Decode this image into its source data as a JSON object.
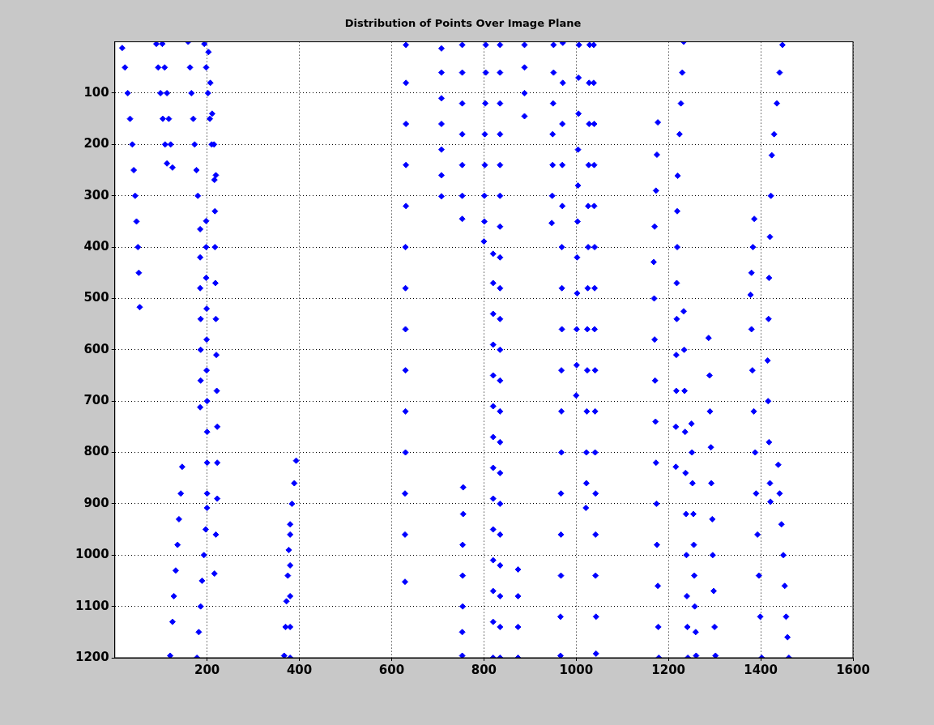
{
  "chart_data": {
    "type": "scatter",
    "title": "Distribution of Points Over Image Plane",
    "xlim": [
      0,
      1600
    ],
    "xticks": [
      200,
      400,
      600,
      800,
      1000,
      1200,
      1400,
      1600
    ],
    "ylim": [
      1200,
      0
    ],
    "yticks": [
      100,
      200,
      300,
      400,
      500,
      600,
      700,
      800,
      900,
      1000,
      1100,
      1200
    ],
    "grid": true,
    "legend": false,
    "marker": "diamond",
    "series": [
      {
        "color": "#0000ff",
        "x": [
          16,
          22,
          28,
          33,
          38,
          41,
          44,
          47,
          50,
          52,
          54
        ],
        "values": [
          12,
          50,
          100,
          150,
          200,
          250,
          300,
          350,
          400,
          450,
          517
        ]
      },
      {
        "color": "#0000ff",
        "x": [
          90,
          94,
          99,
          104,
          109,
          113
        ],
        "values": [
          4,
          50,
          100,
          150,
          200,
          237
        ]
      },
      {
        "color": "#0000ff",
        "x": [
          103,
          108,
          113,
          117,
          121,
          125
        ],
        "values": [
          4,
          50,
          100,
          150,
          200,
          245
        ]
      },
      {
        "color": "#0000ff",
        "x": [
          159,
          163,
          166,
          170,
          173,
          177,
          180,
          185,
          185,
          185,
          186,
          186,
          186,
          185
        ],
        "values": [
          0,
          50,
          100,
          150,
          200,
          250,
          300,
          365,
          420,
          480,
          540,
          600,
          660,
          712
        ]
      },
      {
        "color": "#0000ff",
        "x": [
          198,
          198,
          198,
          199,
          199,
          199,
          200,
          200,
          200,
          200,
          200
        ],
        "values": [
          349,
          400,
          460,
          520,
          580,
          640,
          700,
          760,
          820,
          880,
          908
        ]
      },
      {
        "color": "#0000ff",
        "x": [
          197,
          193,
          189,
          186,
          182,
          178
        ],
        "values": [
          950,
          1000,
          1050,
          1100,
          1150,
          1200
        ]
      },
      {
        "color": "#0000ff",
        "x": [
          194,
          198,
          202,
          206,
          210,
          216,
          217,
          217,
          218,
          219,
          220,
          221,
          222,
          222,
          222,
          219,
          216
        ],
        "values": [
          4,
          50,
          100,
          150,
          200,
          269,
          330,
          400,
          470,
          540,
          610,
          680,
          750,
          820,
          890,
          960,
          1036
        ]
      },
      {
        "color": "#0000ff",
        "x": [
          203,
          207,
          211,
          215,
          219
        ],
        "values": [
          20,
          80,
          140,
          200,
          260
        ]
      },
      {
        "color": "#0000ff",
        "x": [
          146,
          143,
          139,
          136,
          132,
          128,
          125,
          120
        ],
        "values": [
          828,
          880,
          930,
          980,
          1030,
          1080,
          1130,
          1196
        ]
      },
      {
        "color": "#0000ff",
        "x": [
          393,
          389,
          384,
          380,
          377,
          375,
          372,
          370,
          367
        ],
        "values": [
          816,
          860,
          900,
          940,
          990,
          1040,
          1090,
          1140,
          1196
        ]
      },
      {
        "color": "#0000ff",
        "x": [
          380,
          380,
          380,
          380,
          380
        ],
        "values": [
          960,
          1020,
          1080,
          1140,
          1200
        ]
      },
      {
        "color": "#0000ff",
        "x": [
          631,
          631,
          631,
          631,
          631,
          630,
          630,
          630,
          630,
          630,
          630,
          629,
          629,
          629
        ],
        "values": [
          6,
          80,
          160,
          240,
          320,
          400,
          480,
          560,
          640,
          720,
          800,
          880,
          960,
          1052
        ]
      },
      {
        "color": "#0000ff",
        "x": [
          708,
          708,
          708,
          708,
          708,
          708,
          708
        ],
        "values": [
          13,
          60,
          110,
          160,
          210,
          260,
          301
        ]
      },
      {
        "color": "#0000ff",
        "x": [
          753,
          753,
          753,
          753,
          753,
          753,
          753
        ],
        "values": [
          6,
          60,
          120,
          180,
          240,
          300,
          345
        ]
      },
      {
        "color": "#0000ff",
        "x": [
          755,
          755,
          754,
          754,
          754,
          753,
          753
        ],
        "values": [
          868,
          920,
          980,
          1040,
          1100,
          1150,
          1196
        ]
      },
      {
        "color": "#0000ff",
        "x": [
          804,
          804,
          803,
          802,
          802,
          801,
          801,
          800
        ],
        "values": [
          6,
          60,
          120,
          180,
          240,
          300,
          350,
          389
        ]
      },
      {
        "color": "#0000ff",
        "x": [
          835,
          835,
          835,
          835,
          835,
          835,
          835,
          835,
          835,
          835,
          835,
          835,
          835,
          835,
          835,
          835,
          835,
          835,
          835,
          835,
          835
        ],
        "values": [
          6,
          60,
          120,
          180,
          240,
          300,
          360,
          420,
          480,
          540,
          600,
          660,
          720,
          780,
          840,
          900,
          960,
          1020,
          1080,
          1140,
          1200
        ]
      },
      {
        "color": "#0000ff",
        "x": [
          820,
          820,
          820,
          820,
          820,
          820,
          820,
          820,
          820,
          820,
          820,
          820,
          820,
          820
        ],
        "values": [
          413,
          470,
          530,
          590,
          650,
          710,
          770,
          830,
          890,
          950,
          1010,
          1070,
          1130,
          1200
        ]
      },
      {
        "color": "#0000ff",
        "x": [
          888,
          888,
          888,
          888
        ],
        "values": [
          6,
          50,
          100,
          145
        ]
      },
      {
        "color": "#0000ff",
        "x": [
          874,
          874,
          874,
          874
        ],
        "values": [
          1028,
          1080,
          1140,
          1200
        ]
      },
      {
        "color": "#0000ff",
        "x": [
          951,
          951,
          950,
          949,
          949,
          948,
          947
        ],
        "values": [
          6,
          60,
          120,
          180,
          240,
          300,
          353
        ]
      },
      {
        "color": "#0000ff",
        "x": [
          971,
          971,
          970,
          970,
          970,
          969,
          969,
          969,
          968,
          968,
          968,
          967,
          967,
          967,
          966,
          966
        ],
        "values": [
          2,
          80,
          160,
          240,
          320,
          400,
          480,
          560,
          640,
          720,
          800,
          880,
          960,
          1040,
          1120,
          1196
        ]
      },
      {
        "color": "#0000ff",
        "x": [
          1006,
          1005,
          1005,
          1004,
          1004,
          1003,
          1002,
          1002,
          1001,
          1001,
          1000
        ],
        "values": [
          6,
          70,
          140,
          210,
          280,
          350,
          420,
          490,
          560,
          630,
          689
        ]
      },
      {
        "color": "#0000ff",
        "x": [
          1029,
          1028,
          1028,
          1027,
          1026,
          1026,
          1025,
          1024,
          1024,
          1023,
          1022,
          1022,
          1021
        ],
        "values": [
          6,
          80,
          160,
          240,
          320,
          400,
          480,
          560,
          640,
          720,
          800,
          860,
          908
        ]
      },
      {
        "color": "#0000ff",
        "x": [
          1038,
          1038,
          1039,
          1039,
          1039,
          1040,
          1040,
          1040,
          1041,
          1041,
          1041,
          1042,
          1042,
          1042,
          1043,
          1043
        ],
        "values": [
          6,
          80,
          160,
          240,
          320,
          400,
          480,
          560,
          640,
          720,
          800,
          880,
          960,
          1040,
          1120,
          1192
        ]
      },
      {
        "color": "#0000ff",
        "x": [
          1177,
          1175,
          1173,
          1170,
          1168,
          1169,
          1170,
          1171,
          1172,
          1173,
          1174,
          1175,
          1177,
          1178,
          1179
        ],
        "values": [
          157,
          220,
          290,
          360,
          429,
          500,
          580,
          660,
          740,
          820,
          900,
          980,
          1060,
          1140,
          1200
        ]
      },
      {
        "color": "#0000ff",
        "x": [
          1233,
          1230,
          1227,
          1224,
          1220,
          1219,
          1219,
          1218,
          1218,
          1217,
          1217,
          1216,
          1216
        ],
        "values": [
          0,
          60,
          120,
          180,
          261,
          330,
          400,
          470,
          540,
          610,
          680,
          750,
          828
        ]
      },
      {
        "color": "#0000ff",
        "x": [
          1233,
          1234,
          1235,
          1236,
          1237,
          1238,
          1239,
          1240,
          1241,
          1242
        ],
        "values": [
          525,
          600,
          680,
          760,
          840,
          920,
          1000,
          1080,
          1140,
          1200
        ]
      },
      {
        "color": "#0000ff",
        "x": [
          1250,
          1251,
          1252,
          1254,
          1255,
          1256,
          1257,
          1259,
          1260
        ],
        "values": [
          744,
          800,
          860,
          920,
          980,
          1040,
          1100,
          1150,
          1196
        ]
      },
      {
        "color": "#0000ff",
        "x": [
          1287,
          1289,
          1290,
          1292,
          1293,
          1295,
          1296,
          1298,
          1300,
          1302
        ],
        "values": [
          577,
          650,
          720,
          790,
          860,
          930,
          1000,
          1070,
          1140,
          1196
        ]
      },
      {
        "color": "#0000ff",
        "x": [
          1386,
          1383,
          1380,
          1378,
          1380,
          1382,
          1385,
          1388,
          1390,
          1393,
          1396,
          1399,
          1402
        ],
        "values": [
          345,
          400,
          450,
          493,
          560,
          640,
          720,
          800,
          880,
          960,
          1040,
          1120,
          1200
        ]
      },
      {
        "color": "#0000ff",
        "x": [
          1447,
          1441,
          1435,
          1429,
          1424,
          1422,
          1420,
          1418,
          1417,
          1415,
          1416,
          1418,
          1420,
          1421
        ],
        "values": [
          6,
          60,
          120,
          180,
          221,
          300,
          380,
          460,
          540,
          621,
          700,
          780,
          860,
          896
        ]
      },
      {
        "color": "#0000ff",
        "x": [
          1438,
          1441,
          1445,
          1449,
          1452,
          1455,
          1458,
          1461
        ],
        "values": [
          824,
          880,
          940,
          1000,
          1060,
          1120,
          1160,
          1200
        ]
      }
    ]
  }
}
